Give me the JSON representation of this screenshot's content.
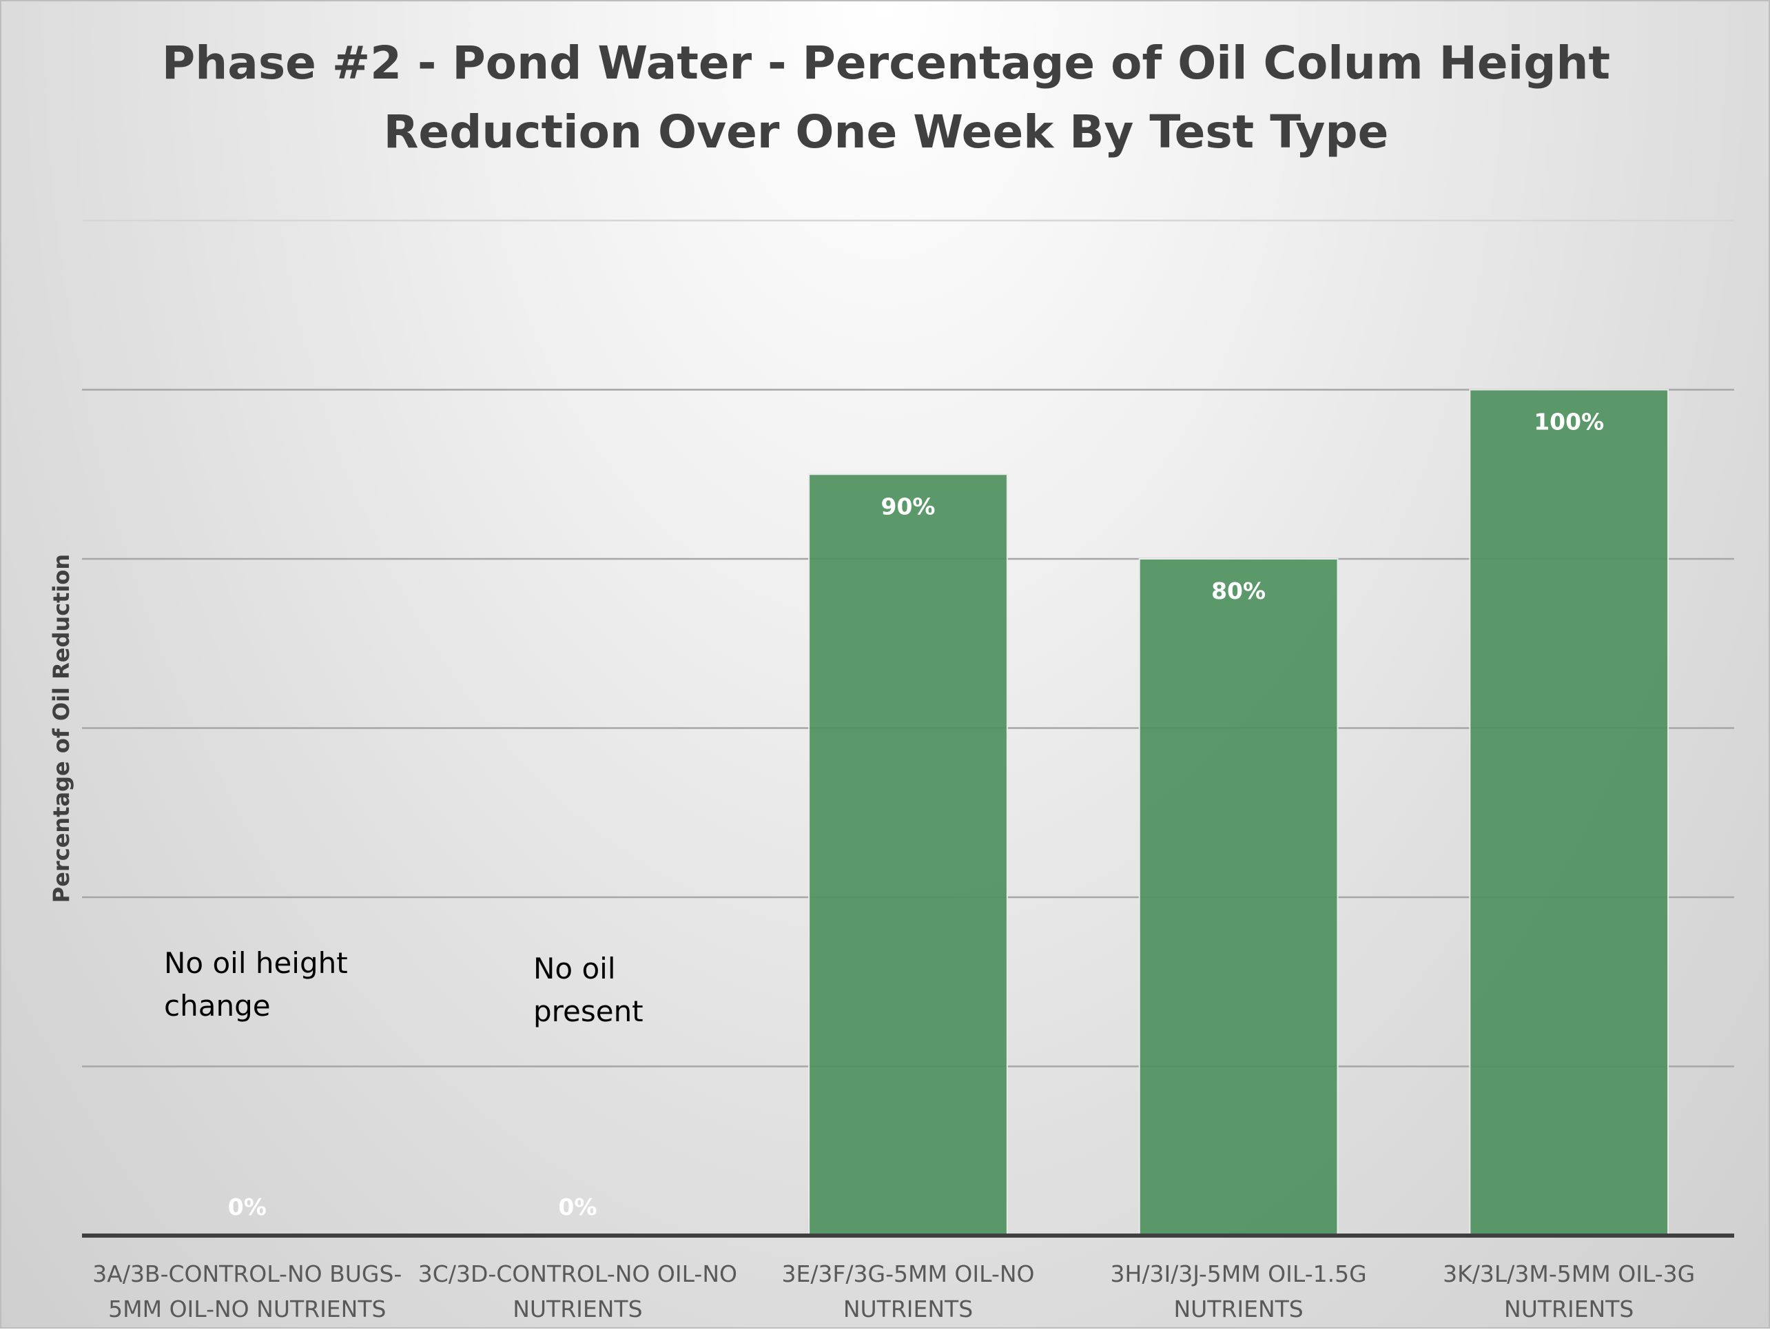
{
  "chart_data": {
    "type": "bar",
    "title_lines": [
      "Phase #2 - Pond Water - Percentage of Oil Colum Height",
      "Reduction Over One Week By Test Type"
    ],
    "xlabel": "",
    "ylabel": "Percentage of Oil Reduction",
    "ylim": [
      0,
      120
    ],
    "gridlines": [
      20,
      40,
      60,
      80,
      100,
      120
    ],
    "grid": true,
    "y_tick_labels_shown": false,
    "bar_color": "#4e915f",
    "categories": [
      [
        "3A/3B-CONTROL-NO BUGS-",
        "5MM OIL-NO NUTRIENTS"
      ],
      [
        "3C/3D-CONTROL-NO OIL-NO",
        "NUTRIENTS"
      ],
      [
        "3E/3F/3G-5MM OIL-NO",
        "NUTRIENTS"
      ],
      [
        "3H/3I/3J-5MM OIL-1.5G",
        "NUTRIENTS"
      ],
      [
        "3K/3L/3M-5MM OIL-3G",
        "NUTRIENTS"
      ]
    ],
    "values": [
      0,
      0,
      90,
      80,
      100
    ],
    "data_labels": [
      "0%",
      "0%",
      "90%",
      "80%",
      "100%"
    ],
    "annotations": [
      {
        "category_index": 0,
        "lines": [
          "No oil height",
          "change"
        ]
      },
      {
        "category_index": 1,
        "lines": [
          "No oil",
          "present"
        ]
      }
    ]
  }
}
